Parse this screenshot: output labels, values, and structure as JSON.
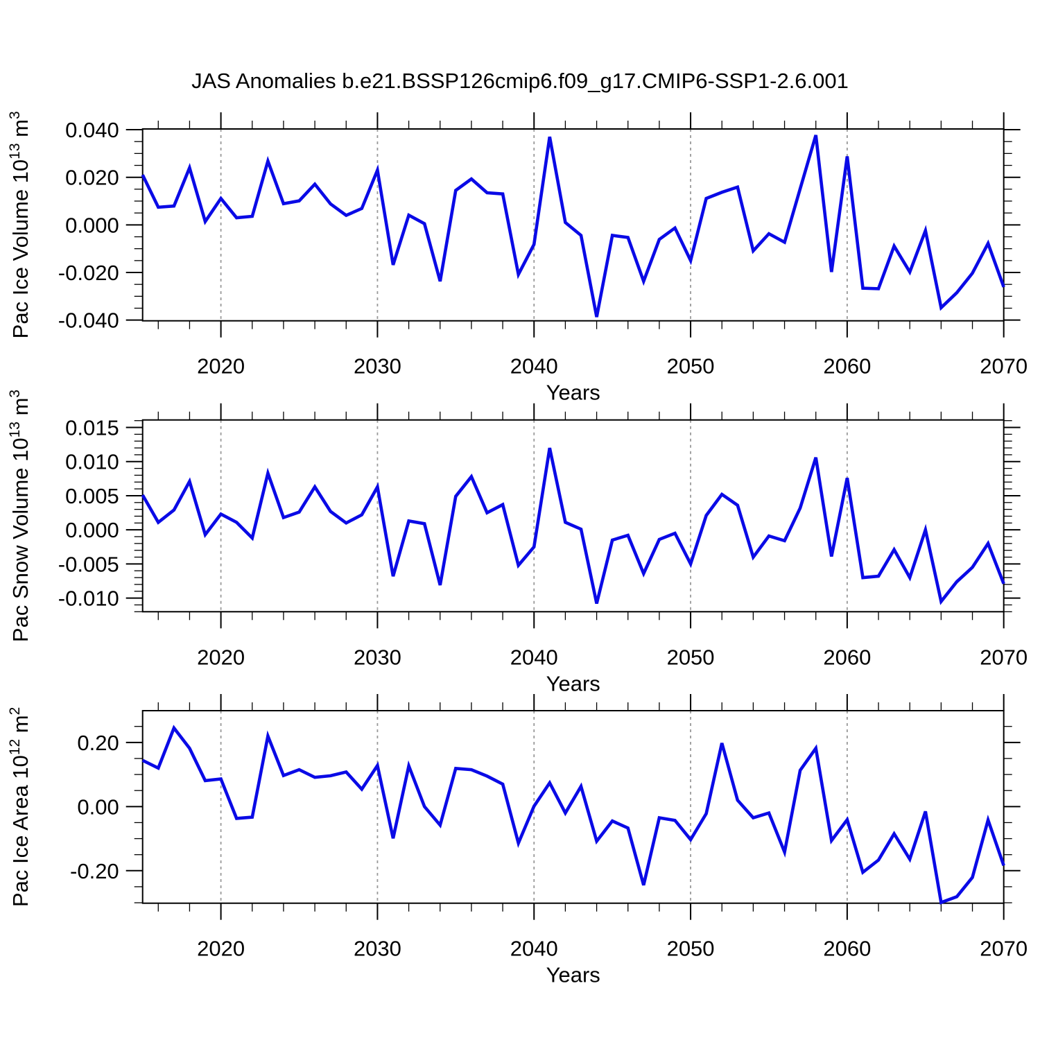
{
  "title": "JAS Anomalies b.e21.BSSP126cmip6.f09_g17.CMIP6-SSP1-2.6.001",
  "style": {
    "line_color": "#0A0AE6",
    "grid_color": "#999999",
    "frame_color": "#000000",
    "background": "#FFFFFF"
  },
  "chart_data": [
    {
      "type": "line",
      "id": "pac-ice-volume",
      "ylabel": "Pac Ice Volume 10^13 m^3",
      "ylabel_parts": [
        [
          "Pac Ice Volume 10",
          0
        ],
        [
          "13",
          1
        ],
        [
          " m",
          0
        ],
        [
          "3",
          1
        ]
      ],
      "xlabel": "Years",
      "xlim": [
        2015,
        2070
      ],
      "ylim": [
        -0.0403,
        0.0403
      ],
      "xticks": [
        2020,
        2030,
        2040,
        2050,
        2060,
        2070
      ],
      "xtick_labels": [
        "2020",
        "2030",
        "2040",
        "2050",
        "2060",
        "2070"
      ],
      "xtick_minor_step": 2,
      "grid_x": [
        2020,
        2030,
        2040,
        2050,
        2060
      ],
      "ytick_vals": [
        0.04,
        0.02,
        0.0,
        -0.02,
        -0.04
      ],
      "ytick_labels": [
        "0.040",
        "0.020",
        "0.000",
        "-0.020",
        "-0.040"
      ],
      "ytick_major_step": 0.02,
      "ytick_minor_step": 0.005,
      "x": [
        2015,
        2016,
        2017,
        2018,
        2019,
        2020,
        2021,
        2022,
        2023,
        2024,
        2025,
        2026,
        2027,
        2028,
        2029,
        2030,
        2031,
        2032,
        2033,
        2034,
        2035,
        2036,
        2037,
        2038,
        2039,
        2040,
        2041,
        2042,
        2043,
        2044,
        2045,
        2046,
        2047,
        2048,
        2049,
        2050,
        2051,
        2052,
        2053,
        2054,
        2055,
        2056,
        2057,
        2058,
        2059,
        2060,
        2061,
        2062,
        2063,
        2064,
        2065,
        2066,
        2067,
        2068,
        2069,
        2070
      ],
      "values": [
        0.021,
        0.0074,
        0.0079,
        0.024,
        0.0014,
        0.0111,
        0.003,
        0.0036,
        0.0268,
        0.0089,
        0.0101,
        0.0171,
        0.0088,
        0.004,
        0.0069,
        0.023,
        -0.0168,
        0.0041,
        0.0005,
        -0.0237,
        0.0145,
        0.0193,
        0.0135,
        0.013,
        -0.0208,
        -0.0082,
        0.037,
        0.001,
        -0.0044,
        -0.0387,
        -0.0044,
        -0.0053,
        -0.0237,
        -0.0061,
        -0.0013,
        -0.015,
        0.0111,
        0.0137,
        0.0159,
        -0.0109,
        -0.0037,
        -0.0073,
        0.0152,
        0.0377,
        -0.0198,
        0.0288,
        -0.0266,
        -0.0268,
        -0.0089,
        -0.0198,
        -0.0024,
        -0.0348,
        -0.0285,
        -0.0203,
        -0.0078,
        -0.0261
      ]
    },
    {
      "type": "line",
      "id": "pac-snow-volume",
      "ylabel": "Pac Snow Volume 10^13 m^3",
      "ylabel_parts": [
        [
          "Pac Snow Volume 10",
          0
        ],
        [
          "13",
          1
        ],
        [
          " m",
          0
        ],
        [
          "3",
          1
        ]
      ],
      "xlabel": "Years",
      "xlim": [
        2015,
        2070
      ],
      "ylim": [
        -0.012,
        0.0161
      ],
      "xticks": [
        2020,
        2030,
        2040,
        2050,
        2060,
        2070
      ],
      "xtick_labels": [
        "2020",
        "2030",
        "2040",
        "2050",
        "2060",
        "2070"
      ],
      "xtick_minor_step": 2,
      "grid_x": [
        2020,
        2030,
        2040,
        2050,
        2060
      ],
      "ytick_vals": [
        0.015,
        0.01,
        0.005,
        0.0,
        -0.005,
        -0.01
      ],
      "ytick_labels": [
        "0.015",
        "0.010",
        "0.005",
        "0.000",
        "-0.005",
        "-0.010"
      ],
      "ytick_major_step": 0.005,
      "ytick_minor_step": 0.001,
      "x": [
        2015,
        2016,
        2017,
        2018,
        2019,
        2020,
        2021,
        2022,
        2023,
        2024,
        2025,
        2026,
        2027,
        2028,
        2029,
        2030,
        2031,
        2032,
        2033,
        2034,
        2035,
        2036,
        2037,
        2038,
        2039,
        2040,
        2041,
        2042,
        2043,
        2044,
        2045,
        2046,
        2047,
        2048,
        2049,
        2050,
        2051,
        2052,
        2053,
        2054,
        2055,
        2056,
        2057,
        2058,
        2059,
        2060,
        2061,
        2062,
        2063,
        2064,
        2065,
        2066,
        2067,
        2068,
        2069,
        2070
      ],
      "values": [
        0.0051,
        0.0011,
        0.0029,
        0.0071,
        -0.0007,
        0.0023,
        0.0011,
        -0.0012,
        0.0083,
        0.0018,
        0.0026,
        0.0063,
        0.0027,
        0.001,
        0.0022,
        0.0063,
        -0.0068,
        0.0013,
        0.0009,
        -0.0081,
        0.0049,
        0.0078,
        0.0025,
        0.0037,
        -0.0052,
        -0.0025,
        0.012,
        0.0011,
        0.0001,
        -0.0108,
        -0.0015,
        -0.0008,
        -0.0064,
        -0.0014,
        -0.0005,
        -0.005,
        0.0021,
        0.0052,
        0.0036,
        -0.004,
        -0.0009,
        -0.0016,
        0.0032,
        0.0106,
        -0.0039,
        0.0076,
        -0.007,
        -0.0068,
        -0.0029,
        -0.007,
        0,
        -0.0105,
        -0.0076,
        -0.0055,
        -0.002,
        -0.0079
      ]
    },
    {
      "type": "line",
      "id": "pac-ice-area",
      "ylabel": "Pac Ice Area 10^12 m^2",
      "ylabel_parts": [
        [
          "Pac Ice Area 10",
          0
        ],
        [
          "12",
          1
        ],
        [
          " m",
          0
        ],
        [
          "2",
          1
        ]
      ],
      "xlabel": "Years",
      "xlim": [
        2015,
        2070
      ],
      "ylim": [
        -0.3014,
        0.2991
      ],
      "xticks": [
        2020,
        2030,
        2040,
        2050,
        2060,
        2070
      ],
      "xtick_labels": [
        "2020",
        "2030",
        "2040",
        "2050",
        "2060",
        "2070"
      ],
      "xtick_minor_step": 2,
      "grid_x": [
        2020,
        2030,
        2040,
        2050,
        2060
      ],
      "ytick_vals": [
        0.2,
        0.0,
        -0.2
      ],
      "ytick_labels": [
        "0.20",
        "0.00",
        "-0.20"
      ],
      "ytick_major_step": 0.2,
      "ytick_minor_step": 0.05,
      "x": [
        2015,
        2016,
        2017,
        2018,
        2019,
        2020,
        2021,
        2022,
        2023,
        2024,
        2025,
        2026,
        2027,
        2028,
        2029,
        2030,
        2031,
        2032,
        2033,
        2034,
        2035,
        2036,
        2037,
        2038,
        2039,
        2040,
        2041,
        2042,
        2043,
        2044,
        2045,
        2046,
        2047,
        2048,
        2049,
        2050,
        2051,
        2052,
        2053,
        2054,
        2055,
        2056,
        2057,
        2058,
        2059,
        2060,
        2061,
        2062,
        2063,
        2064,
        2065,
        2066,
        2067,
        2068,
        2069,
        2070
      ],
      "values": [
        0.144,
        0.12,
        0.245,
        0.182,
        0.081,
        0.086,
        -0.037,
        -0.033,
        0.22,
        0.097,
        0.115,
        0.091,
        0.096,
        0.108,
        0.054,
        0.128,
        -0.099,
        0.127,
        0,
        -0.058,
        0.119,
        0.115,
        0.095,
        0.07,
        -0.114,
        0.001,
        0.074,
        -0.02,
        0.063,
        -0.108,
        -0.045,
        -0.067,
        -0.245,
        -0.035,
        -0.043,
        -0.103,
        -0.022,
        0.198,
        0.02,
        -0.035,
        -0.02,
        -0.142,
        0.113,
        0.182,
        -0.106,
        -0.041,
        -0.205,
        -0.167,
        -0.085,
        -0.164,
        -0.015,
        -0.299,
        -0.281,
        -0.221,
        -0.042,
        -0.184
      ]
    }
  ]
}
